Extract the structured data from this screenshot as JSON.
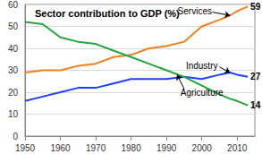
{
  "chart_data": {
    "type": "line",
    "title": "Sector contribution to GDP (%)",
    "x": [
      1950,
      1955,
      1960,
      1965,
      1970,
      1975,
      1980,
      1985,
      1990,
      1995,
      2000,
      2005,
      2008,
      2010,
      2013
    ],
    "series": [
      {
        "name": "Services",
        "color": "#f07f1e",
        "values": [
          29,
          30,
          30,
          32,
          33,
          36,
          37,
          40,
          41,
          43,
          50,
          53,
          55,
          57,
          59
        ]
      },
      {
        "name": "Industry",
        "color": "#1f3fff",
        "values": [
          16,
          18,
          20,
          22,
          22,
          24,
          26,
          26,
          26,
          27,
          26,
          28,
          29,
          28,
          27
        ]
      },
      {
        "name": "Agriculture",
        "color": "#1fa83c",
        "values": [
          52,
          51,
          45,
          43,
          42,
          39,
          36,
          33,
          30,
          27,
          23,
          19,
          17,
          16,
          14
        ]
      }
    ],
    "annotations": [
      {
        "text": "Services",
        "x": 1998,
        "y": 57,
        "arrow_to": [
          2008,
          55
        ]
      },
      {
        "text": "Industry",
        "x": 2000,
        "y": 32,
        "arrow_to": [
          2008,
          29
        ]
      },
      {
        "text": "Agriculture",
        "x": 2000,
        "y": 20,
        "arrow_to": [
          1993,
          28
        ]
      },
      {
        "text": "59",
        "x": 2013,
        "y": 59
      },
      {
        "text": "27",
        "x": 2013,
        "y": 27
      },
      {
        "text": "14",
        "x": 2013,
        "y": 14
      }
    ],
    "xlim": [
      1950,
      2015
    ],
    "xticks": [
      1950,
      1960,
      1970,
      1980,
      1990,
      2000,
      2010
    ],
    "ylim": [
      0,
      60
    ],
    "yticks": [
      0,
      10,
      20,
      30,
      40,
      50,
      60
    ],
    "grid": true
  }
}
